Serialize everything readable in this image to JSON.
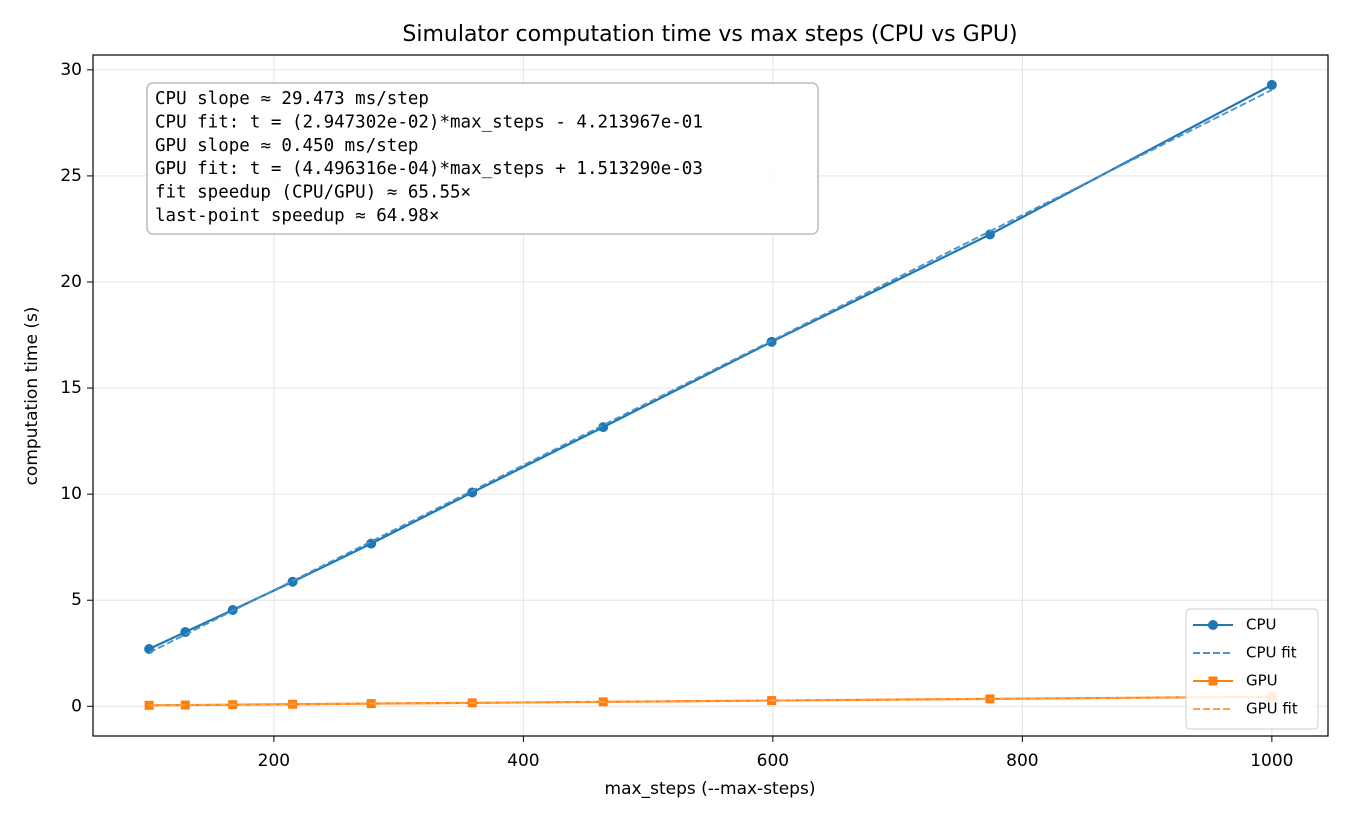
{
  "chart_data": {
    "type": "line",
    "title": "Simulator computation time vs max steps (CPU vs GPU)",
    "xlabel": "max_steps (--max-steps)",
    "ylabel": "computation time (s)",
    "xlim": [
      55,
      1045
    ],
    "ylim": [
      -1.4,
      30.7
    ],
    "xticks": [
      200,
      400,
      600,
      800,
      1000
    ],
    "yticks": [
      0,
      5,
      10,
      15,
      20,
      25,
      30
    ],
    "grid": true,
    "legend": "lower right",
    "annotations": [
      "CPU slope ≈ 29.473 ms/step",
      "CPU fit: t = (2.947302e-02)*max_steps - 4.213967e-01",
      "GPU slope ≈ 0.450 ms/step",
      "GPU fit: t = (4.496316e-04)*max_steps + 1.513290e-03",
      "fit speedup (CPU/GPU) ≈ 65.55×",
      "last-point speedup ≈ 64.98×"
    ],
    "series": [
      {
        "name": "CPU",
        "color": "#1f77b4",
        "marker": "circle",
        "linestyle": "solid",
        "x": [
          100,
          129,
          167,
          215,
          278,
          359,
          464,
          599,
          774,
          1000
        ],
        "values": [
          2.7,
          3.5,
          4.54,
          5.87,
          7.67,
          10.08,
          13.16,
          17.18,
          22.24,
          29.29
        ]
      },
      {
        "name": "CPU fit",
        "color": "#4a93c8",
        "marker": "none",
        "linestyle": "dashed",
        "x": [
          100,
          1000
        ],
        "values": [
          2.526,
          29.052
        ]
      },
      {
        "name": "GPU",
        "color": "#ff7f0e",
        "marker": "square",
        "linestyle": "solid",
        "x": [
          100,
          129,
          167,
          215,
          278,
          359,
          464,
          599,
          774,
          1000
        ],
        "values": [
          0.046,
          0.059,
          0.077,
          0.098,
          0.127,
          0.163,
          0.21,
          0.27,
          0.35,
          0.451
        ]
      },
      {
        "name": "GPU fit",
        "color": "#ffa04a",
        "marker": "none",
        "linestyle": "dashed",
        "x": [
          100,
          1000
        ],
        "values": [
          0.047,
          0.451
        ]
      }
    ]
  }
}
